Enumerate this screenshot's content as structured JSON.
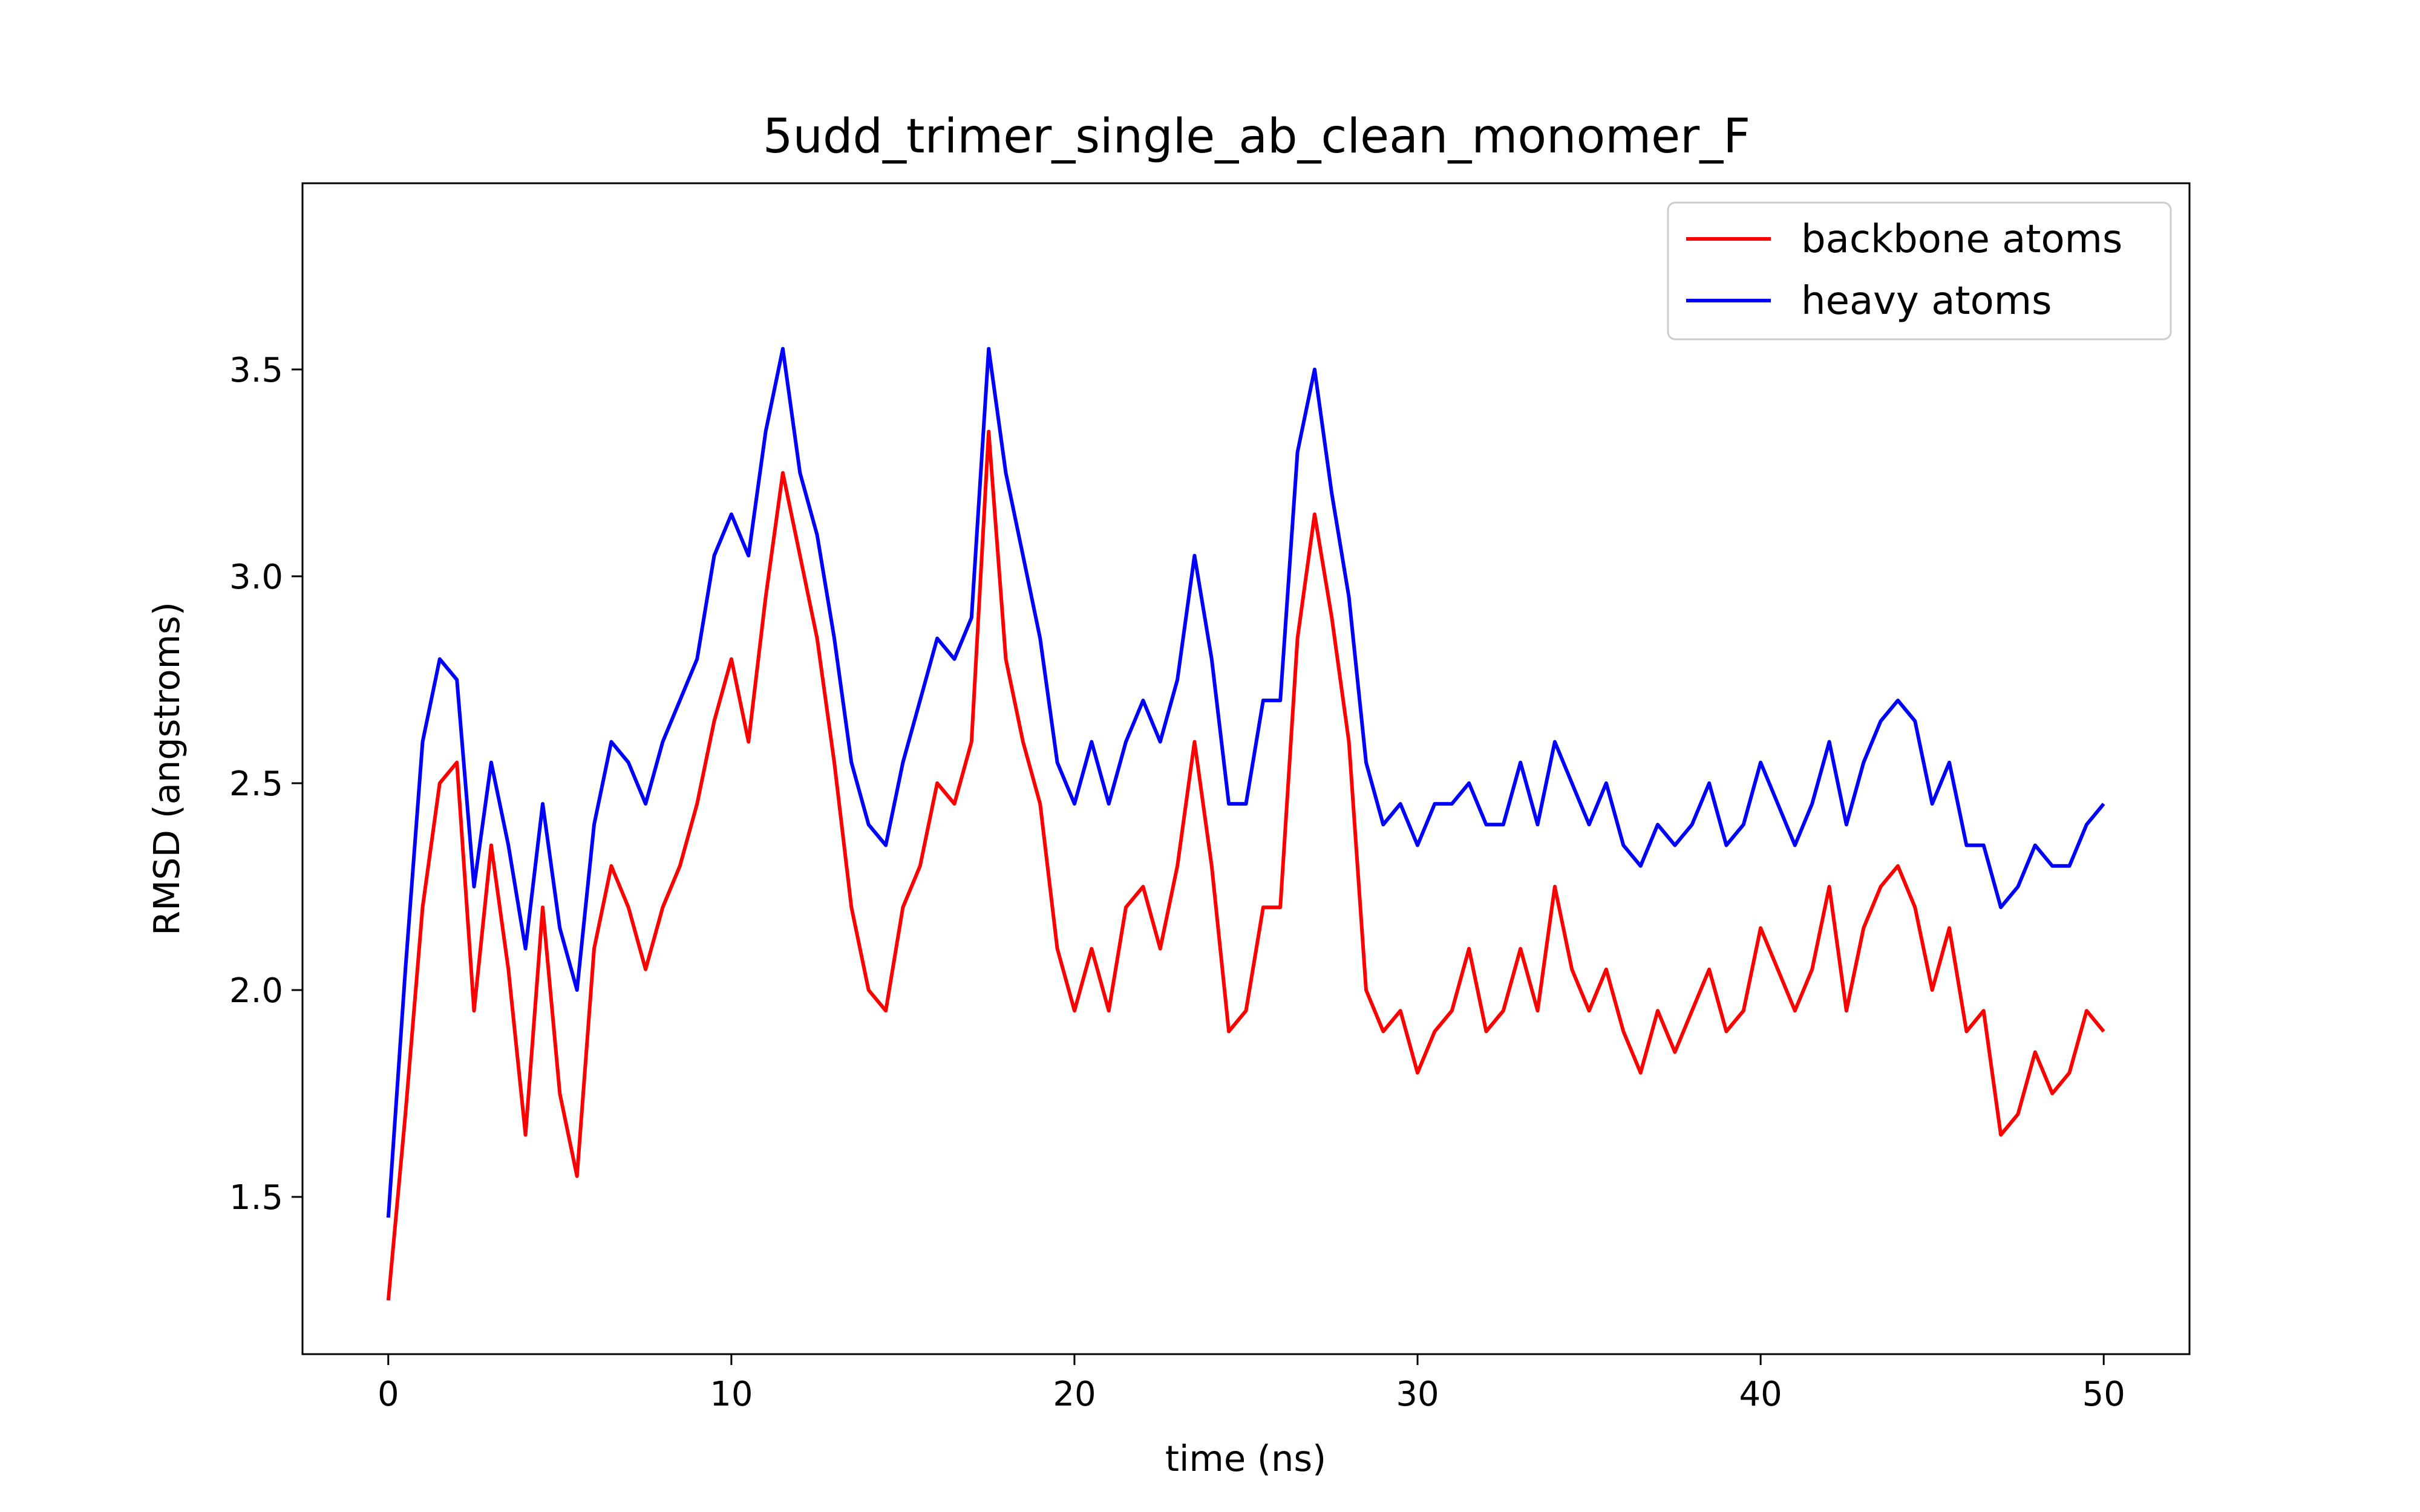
{
  "chart_data": {
    "type": "line",
    "title": "5udd_trimer_single_ab_clean_monomer_F",
    "xlabel": "time (ns)",
    "ylabel": "RMSD (angstroms)",
    "xlim": [
      -2.5,
      52.5
    ],
    "ylim": [
      1.12,
      3.95
    ],
    "x_ticks": [
      0,
      10,
      20,
      30,
      40,
      50
    ],
    "x_tick_labels": [
      "0",
      "10",
      "20",
      "30",
      "40",
      "50"
    ],
    "y_ticks": [
      1.5,
      2.0,
      2.5,
      3.0,
      3.5
    ],
    "y_tick_labels": [
      "1.5",
      "2.0",
      "2.5",
      "3.0",
      "3.5"
    ],
    "grid": false,
    "legend_position": "top-right",
    "series": [
      {
        "name": "backbone atoms",
        "color": "#ff0000",
        "x": [
          0,
          0.5,
          1,
          1.5,
          2,
          2.5,
          3,
          3.5,
          4,
          4.5,
          5,
          5.5,
          6,
          6.5,
          7,
          7.5,
          8,
          8.5,
          9,
          9.5,
          10,
          10.5,
          11,
          11.5,
          12,
          12.5,
          13,
          13.5,
          14,
          14.5,
          15,
          15.5,
          16,
          16.5,
          17,
          17.5,
          18,
          18.5,
          19,
          19.5,
          20,
          20.5,
          21,
          21.5,
          22,
          22.5,
          23,
          23.5,
          24,
          24.5,
          25,
          25.5,
          26,
          26.5,
          27,
          27.5,
          28,
          28.5,
          29,
          29.5,
          30,
          30.5,
          31,
          31.5,
          32,
          32.5,
          33,
          33.5,
          34,
          34.5,
          35,
          35.5,
          36,
          36.5,
          37,
          37.5,
          38,
          38.5,
          39,
          39.5,
          40,
          40.5,
          41,
          41.5,
          42,
          42.5,
          43,
          43.5,
          44,
          44.5,
          45,
          45.5,
          46,
          46.5,
          47,
          47.5,
          48,
          48.5,
          49,
          49.5,
          50
        ],
        "y": [
          1.25,
          1.7,
          2.2,
          2.5,
          2.55,
          1.95,
          2.35,
          2.05,
          1.65,
          2.2,
          1.75,
          1.55,
          2.1,
          2.3,
          2.2,
          2.05,
          2.2,
          2.3,
          2.45,
          2.65,
          2.8,
          2.6,
          2.95,
          3.25,
          3.05,
          2.85,
          2.55,
          2.2,
          2.0,
          1.95,
          2.2,
          2.3,
          2.5,
          2.45,
          2.6,
          3.35,
          2.8,
          2.6,
          2.45,
          2.1,
          1.95,
          2.1,
          1.95,
          2.2,
          2.25,
          2.1,
          2.3,
          2.6,
          2.3,
          1.9,
          1.95,
          2.2,
          2.2,
          2.85,
          3.15,
          2.9,
          2.6,
          2.0,
          1.9,
          1.95,
          1.8,
          1.9,
          1.95,
          2.1,
          1.9,
          1.95,
          2.1,
          1.95,
          2.25,
          2.05,
          1.95,
          2.05,
          1.9,
          1.8,
          1.95,
          1.85,
          1.95,
          2.05,
          1.9,
          1.95,
          2.15,
          2.05,
          1.95,
          2.05,
          2.25,
          1.95,
          2.15,
          2.25,
          2.3,
          2.2,
          2.0,
          2.15,
          1.9,
          1.95,
          1.65,
          1.7,
          1.85,
          1.75,
          1.8,
          1.95,
          1.9
        ]
      },
      {
        "name": "heavy atoms",
        "color": "#0000ff",
        "x": [
          0,
          0.5,
          1,
          1.5,
          2,
          2.5,
          3,
          3.5,
          4,
          4.5,
          5,
          5.5,
          6,
          6.5,
          7,
          7.5,
          8,
          8.5,
          9,
          9.5,
          10,
          10.5,
          11,
          11.5,
          12,
          12.5,
          13,
          13.5,
          14,
          14.5,
          15,
          15.5,
          16,
          16.5,
          17,
          17.5,
          18,
          18.5,
          19,
          19.5,
          20,
          20.5,
          21,
          21.5,
          22,
          22.5,
          23,
          23.5,
          24,
          24.5,
          25,
          25.5,
          26,
          26.5,
          27,
          27.5,
          28,
          28.5,
          29,
          29.5,
          30,
          30.5,
          31,
          31.5,
          32,
          32.5,
          33,
          33.5,
          34,
          34.5,
          35,
          35.5,
          36,
          36.5,
          37,
          37.5,
          38,
          38.5,
          39,
          39.5,
          40,
          40.5,
          41,
          41.5,
          42,
          42.5,
          43,
          43.5,
          44,
          44.5,
          45,
          45.5,
          46,
          46.5,
          47,
          47.5,
          48,
          48.5,
          49,
          49.5,
          50
        ],
        "y": [
          1.45,
          2.05,
          2.6,
          2.8,
          2.75,
          2.25,
          2.55,
          2.35,
          2.1,
          2.45,
          2.15,
          2.0,
          2.4,
          2.6,
          2.55,
          2.45,
          2.6,
          2.7,
          2.8,
          3.05,
          3.15,
          3.05,
          3.35,
          3.55,
          3.25,
          3.1,
          2.85,
          2.55,
          2.4,
          2.35,
          2.55,
          2.7,
          2.85,
          2.8,
          2.9,
          3.55,
          3.25,
          3.05,
          2.85,
          2.55,
          2.45,
          2.6,
          2.45,
          2.6,
          2.7,
          2.6,
          2.75,
          3.05,
          2.8,
          2.45,
          2.45,
          2.7,
          2.7,
          3.3,
          3.5,
          3.2,
          2.95,
          2.55,
          2.4,
          2.45,
          2.35,
          2.45,
          2.45,
          2.5,
          2.4,
          2.4,
          2.55,
          2.4,
          2.6,
          2.5,
          2.4,
          2.5,
          2.35,
          2.3,
          2.4,
          2.35,
          2.4,
          2.5,
          2.35,
          2.4,
          2.55,
          2.45,
          2.35,
          2.45,
          2.6,
          2.4,
          2.55,
          2.65,
          2.7,
          2.65,
          2.45,
          2.55,
          2.35,
          2.35,
          2.2,
          2.25,
          2.35,
          2.3,
          2.3,
          2.4,
          2.45
        ]
      }
    ]
  }
}
